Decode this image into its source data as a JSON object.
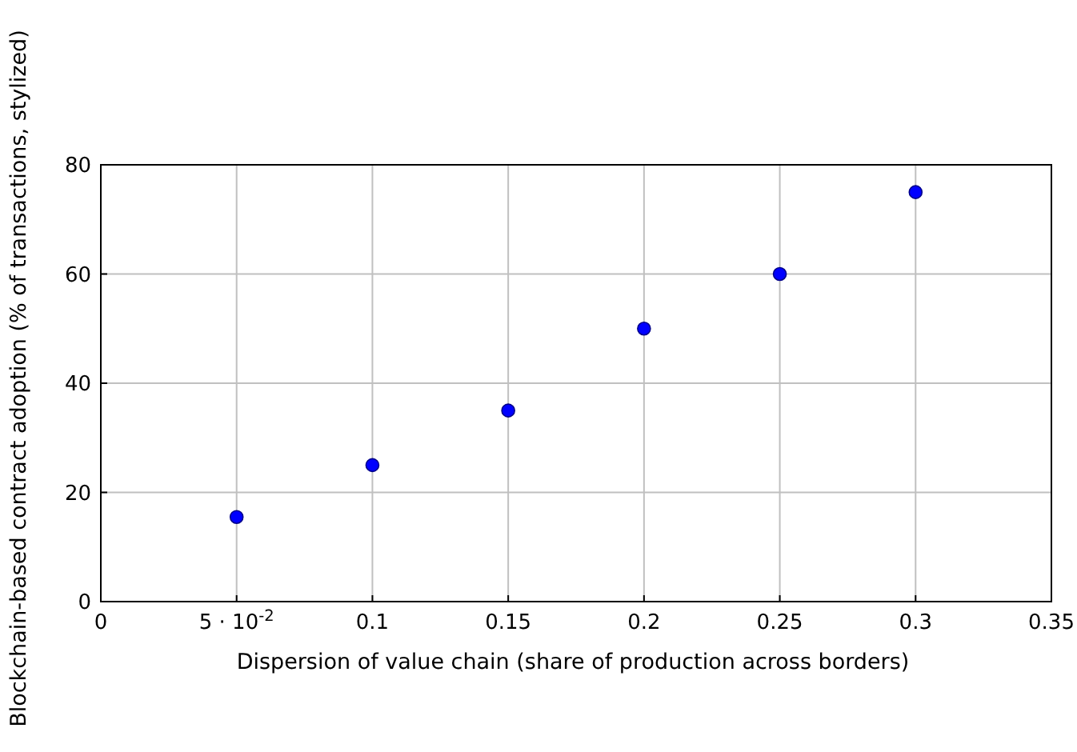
{
  "chart_data": {
    "type": "scatter",
    "xlabel": "Dispersion of value chain (share of production across borders)",
    "ylabel": "Blockchain-based contract adoption (% of transactions, stylized)",
    "x": [
      0.05,
      0.1,
      0.15,
      0.2,
      0.25,
      0.3
    ],
    "values": [
      15.5,
      25,
      35,
      50,
      60,
      75
    ],
    "color": "#0000ff",
    "marker": "circle",
    "xlim": [
      0,
      0.35
    ],
    "xticks": [
      0,
      {
        "value": 0.05,
        "label": "5 · 10$^{-2}$"
      },
      0.1,
      0.15,
      0.2,
      0.25,
      0.3,
      0.35
    ],
    "ylim": [
      0,
      80
    ],
    "yticks": [
      0,
      20,
      40,
      60,
      80
    ],
    "grid": true
  }
}
